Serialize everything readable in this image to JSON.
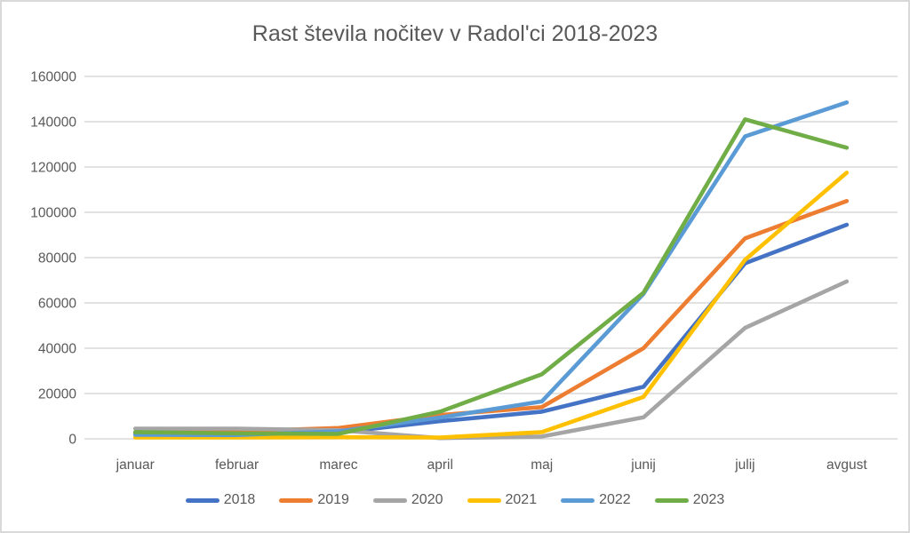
{
  "style": {
    "background": "#FFFFFF",
    "border_color": "#D9D9D9",
    "grid_color": "#D9D9D9",
    "axis_color": "#D9D9D9",
    "text_color": "#595959"
  },
  "chart_data": {
    "type": "line",
    "title": "Rast števila nočitev v Radol'ci 2018-2023",
    "xlabel": "",
    "ylabel": "",
    "ylim": [
      0,
      160000
    ],
    "yticks": [
      0,
      20000,
      40000,
      60000,
      80000,
      100000,
      120000,
      140000,
      160000
    ],
    "grid": "horizontal",
    "legend_position": "bottom",
    "categories": [
      "januar",
      "februar",
      "marec",
      "april",
      "maj",
      "junij",
      "julij",
      "avgust"
    ],
    "series": [
      {
        "name": "2018",
        "color": "#4472C4",
        "values": [
          2200,
          2000,
          2800,
          7800,
          12000,
          23000,
          77500,
          94500
        ]
      },
      {
        "name": "2019",
        "color": "#ED7D31",
        "values": [
          2600,
          3300,
          4800,
          10500,
          14000,
          40000,
          88500,
          105000
        ]
      },
      {
        "name": "2020",
        "color": "#A5A5A5",
        "values": [
          4500,
          4500,
          3800,
          300,
          1000,
          9500,
          49000,
          69500
        ]
      },
      {
        "name": "2021",
        "color": "#FFC000",
        "values": [
          600,
          600,
          700,
          600,
          3000,
          18500,
          79000,
          117500
        ]
      },
      {
        "name": "2022",
        "color": "#5B9BD5",
        "values": [
          1800,
          1700,
          3300,
          9400,
          16500,
          64000,
          133500,
          148500
        ]
      },
      {
        "name": "2023",
        "color": "#70AD47",
        "values": [
          3000,
          2400,
          2200,
          12000,
          28500,
          64500,
          141000,
          128500
        ]
      }
    ]
  }
}
